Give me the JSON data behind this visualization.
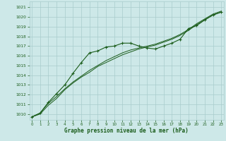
{
  "title": "Graphe pression niveau de la mer (hPa)",
  "bg_color": "#cde8e8",
  "grid_color": "#a8cccc",
  "line_color": "#1a5c1a",
  "marker_color": "#1a5c1a",
  "xlim": [
    -0.3,
    23.3
  ],
  "ylim": [
    1009.4,
    1021.6
  ],
  "yticks": [
    1010,
    1011,
    1012,
    1013,
    1014,
    1015,
    1016,
    1017,
    1018,
    1019,
    1020,
    1021
  ],
  "xticks": [
    0,
    1,
    2,
    3,
    4,
    5,
    6,
    7,
    8,
    9,
    10,
    11,
    12,
    13,
    14,
    15,
    16,
    17,
    18,
    19,
    20,
    21,
    22,
    23
  ],
  "series1_x": [
    0,
    1,
    2,
    3,
    4,
    5,
    6,
    7,
    8,
    9,
    10,
    11,
    12,
    13,
    14,
    15,
    16,
    17,
    18,
    19,
    20,
    21,
    22,
    23
  ],
  "series1_y": [
    1009.7,
    1010.1,
    1011.2,
    1012.1,
    1013.0,
    1014.2,
    1015.3,
    1016.3,
    1016.5,
    1016.9,
    1017.0,
    1017.3,
    1017.3,
    1017.0,
    1016.8,
    1016.7,
    1017.0,
    1017.3,
    1017.7,
    1018.8,
    1019.1,
    1019.7,
    1020.2,
    1020.5
  ],
  "series2_x": [
    0,
    1,
    2,
    3,
    4,
    5,
    6,
    7,
    8,
    9,
    10,
    11,
    12,
    13,
    14,
    15,
    16,
    17,
    18,
    19,
    20,
    21,
    22,
    23
  ],
  "series2_y": [
    1009.7,
    1010.1,
    1011.1,
    1011.8,
    1012.6,
    1013.3,
    1013.9,
    1014.5,
    1015.0,
    1015.5,
    1015.9,
    1016.3,
    1016.6,
    1016.8,
    1017.0,
    1017.2,
    1017.5,
    1017.8,
    1018.2,
    1018.7,
    1019.3,
    1019.8,
    1020.3,
    1020.6
  ],
  "series3_x": [
    0,
    1,
    2,
    3,
    4,
    5,
    6,
    7,
    8,
    9,
    10,
    11,
    12,
    13,
    14,
    15,
    16,
    17,
    18,
    19,
    20,
    21,
    22,
    23
  ],
  "series3_y": [
    1009.7,
    1010.0,
    1010.9,
    1011.6,
    1012.5,
    1013.2,
    1013.8,
    1014.3,
    1014.9,
    1015.3,
    1015.7,
    1016.1,
    1016.4,
    1016.7,
    1016.9,
    1017.1,
    1017.4,
    1017.7,
    1018.1,
    1018.6,
    1019.2,
    1019.7,
    1020.2,
    1020.5
  ]
}
